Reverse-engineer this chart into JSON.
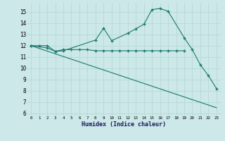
{
  "xlabel": "Humidex (Indice chaleur)",
  "bg_color": "#cce8e8",
  "grid_color": "#b8d8d8",
  "line_color": "#1a7a6e",
  "xlim": [
    -0.5,
    23.5
  ],
  "ylim": [
    5.8,
    15.8
  ],
  "yticks": [
    6,
    7,
    8,
    9,
    10,
    11,
    12,
    13,
    14,
    15
  ],
  "xticks": [
    0,
    1,
    2,
    3,
    4,
    5,
    6,
    7,
    8,
    9,
    10,
    11,
    12,
    13,
    14,
    15,
    16,
    17,
    18,
    19,
    20,
    21,
    22,
    23
  ],
  "line1_x": [
    0,
    1,
    2,
    3,
    4,
    8,
    9,
    10,
    12,
    13,
    14,
    15,
    16,
    17,
    19,
    20,
    21,
    22,
    23
  ],
  "line1_y": [
    12.0,
    12.0,
    12.0,
    11.5,
    11.55,
    12.5,
    13.55,
    12.45,
    13.1,
    13.5,
    13.9,
    15.2,
    15.3,
    15.05,
    12.7,
    11.65,
    10.3,
    9.35,
    8.2
  ],
  "line2_x": [
    0,
    2,
    3,
    4,
    5,
    6,
    7,
    8,
    9,
    10,
    11,
    12,
    13,
    14,
    15,
    16,
    17,
    18,
    19
  ],
  "line2_y": [
    12.0,
    11.8,
    11.5,
    11.65,
    11.65,
    11.65,
    11.65,
    11.55,
    11.55,
    11.55,
    11.55,
    11.55,
    11.55,
    11.55,
    11.55,
    11.55,
    11.55,
    11.55,
    11.55
  ],
  "line3_x": [
    0,
    23
  ],
  "line3_y": [
    12.0,
    6.5
  ]
}
